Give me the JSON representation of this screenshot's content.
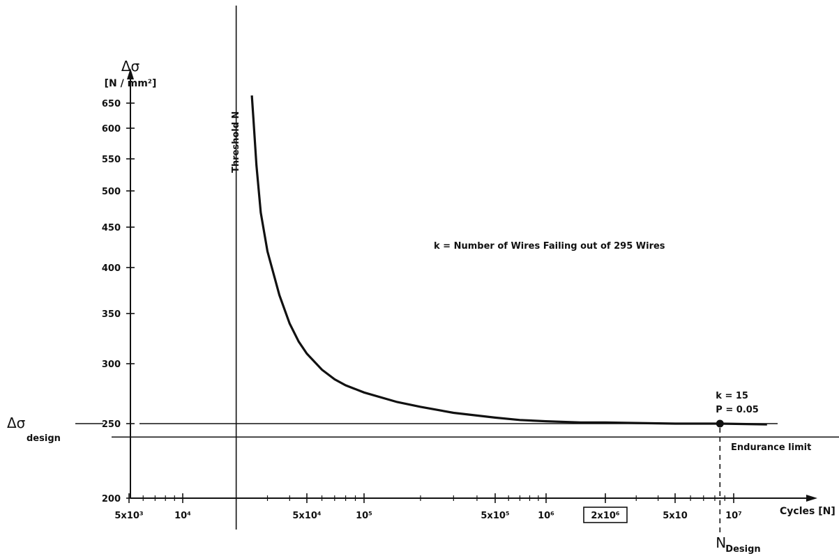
{
  "chart_data": {
    "type": "line",
    "title": "",
    "xscale": "log",
    "xlim": [
      4000,
      25000000
    ],
    "ylim": [
      200,
      680
    ],
    "xlabel": "Cycles [N]",
    "ylabel": "Δσ",
    "ylabel_unit": "N / mm²",
    "yticks": [
      200,
      250,
      300,
      350,
      400,
      450,
      500,
      550,
      600,
      650
    ],
    "xtick_labels": [
      {
        "x": 5000,
        "label": "5x10³"
      },
      {
        "x": 10000,
        "label": "10⁴"
      },
      {
        "x": 50000,
        "label": "5x10⁴"
      },
      {
        "x": 100000,
        "label": "10⁵"
      },
      {
        "x": 500000,
        "label": "5x10⁵"
      },
      {
        "x": 1000000,
        "label": "10⁶"
      },
      {
        "x": 2000000,
        "label": "2x10⁶",
        "boxed": true
      },
      {
        "x": 5000000,
        "label": "5x10"
      },
      {
        "x": 10000000,
        "label": "10⁷"
      }
    ],
    "minor_ticks": [
      6000,
      7000,
      8000,
      9000,
      20000,
      30000,
      40000,
      60000,
      70000,
      80000,
      90000,
      200000,
      300000,
      400000,
      600000,
      700000,
      800000,
      900000,
      2000000,
      3000000,
      4000000,
      6000000,
      7000000,
      8000000,
      9000000
    ],
    "series": [
      {
        "x": [
          24500,
          25000,
          26000,
          27500,
          30000,
          35000,
          40000,
          45000,
          50000,
          60000,
          70000,
          80000,
          100000,
          150000,
          200000,
          300000,
          500000,
          700000,
          1000000,
          1500000,
          2000000,
          3000000,
          5000000,
          8500000,
          15000000
        ],
        "y": [
          665,
          620,
          540,
          470,
          420,
          370,
          340,
          322,
          310,
          295,
          287,
          282,
          276,
          268,
          264,
          259,
          255,
          253,
          252,
          251,
          251,
          250.5,
          250,
          250,
          249.5
        ]
      }
    ],
    "threshold_line": {
      "x": 20000,
      "label": "Threshold N"
    },
    "design_line": {
      "y": 250,
      "label_main": "Δσ",
      "label_sub": "design"
    },
    "endurance_line": {
      "y": 241,
      "label": "Endurance limit"
    },
    "design_point": {
      "x": 8500000,
      "y": 250,
      "labels": [
        "k = 15",
        "P = 0.05"
      ],
      "xlabel_main": "N",
      "xlabel_sub": "Design"
    },
    "annotation": "k = Number of Wires Failing out of 295 Wires"
  }
}
